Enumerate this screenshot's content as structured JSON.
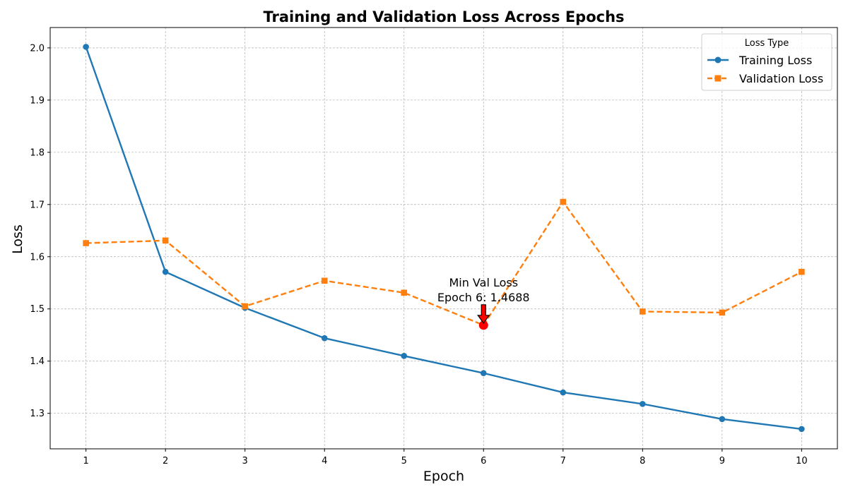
{
  "chart_data": {
    "type": "line",
    "title": "Training and Validation Loss Across Epochs",
    "xlabel": "Epoch",
    "ylabel": "Loss",
    "x": [
      1,
      2,
      3,
      4,
      5,
      6,
      7,
      8,
      9,
      10
    ],
    "xlim": [
      0.55,
      10.45
    ],
    "ylim": [
      1.232,
      2.039
    ],
    "yticks": [
      1.3,
      1.4,
      1.5,
      1.6,
      1.7,
      1.8,
      1.9,
      2.0
    ],
    "ytick_labels": [
      "1.3",
      "1.4",
      "1.5",
      "1.6",
      "1.7",
      "1.8",
      "1.9",
      "2.0"
    ],
    "xtick_labels": [
      "1",
      "2",
      "3",
      "4",
      "5",
      "6",
      "7",
      "8",
      "9",
      "10"
    ],
    "grid": true,
    "legend": {
      "title": "Loss Type",
      "placement": "top-right"
    },
    "series": [
      {
        "name": "Training Loss",
        "color": "#1f77b4",
        "marker": "circle",
        "linestyle": "solid",
        "values": [
          2.002,
          1.571,
          1.502,
          1.444,
          1.41,
          1.377,
          1.34,
          1.318,
          1.289,
          1.27
        ]
      },
      {
        "name": "Validation Loss",
        "color": "#ff7f0e",
        "marker": "square",
        "linestyle": "dashed",
        "values": [
          1.626,
          1.631,
          1.505,
          1.554,
          1.531,
          1.4688,
          1.705,
          1.495,
          1.493,
          1.571
        ]
      }
    ],
    "annotation": {
      "line1": "Min Val Loss",
      "line2": "Epoch 6: 1.4688",
      "x": 6,
      "y": 1.4688,
      "highlight_color": "#ff0000"
    }
  }
}
